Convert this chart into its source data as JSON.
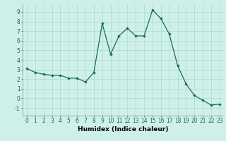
{
  "x": [
    0,
    1,
    2,
    3,
    4,
    5,
    6,
    7,
    8,
    9,
    10,
    11,
    12,
    13,
    14,
    15,
    16,
    17,
    18,
    19,
    20,
    21,
    22,
    23
  ],
  "y": [
    3.1,
    2.7,
    2.5,
    2.4,
    2.4,
    2.1,
    2.1,
    1.7,
    2.7,
    7.8,
    4.6,
    6.5,
    7.3,
    6.5,
    6.5,
    9.2,
    8.3,
    6.7,
    3.4,
    1.5,
    0.3,
    -0.2,
    -0.7,
    -0.6
  ],
  "line_color": "#1a6b5a",
  "marker": "D",
  "marker_size": 1.8,
  "bg_color": "#cff0ea",
  "grid_color": "#aad8d0",
  "xlabel": "Humidex (Indice chaleur)",
  "xlim": [
    -0.5,
    23.5
  ],
  "ylim": [
    -1.8,
    9.8
  ],
  "yticks": [
    -1,
    0,
    1,
    2,
    3,
    4,
    5,
    6,
    7,
    8,
    9
  ],
  "xlabel_fontsize": 6.5,
  "tick_fontsize": 5.5
}
